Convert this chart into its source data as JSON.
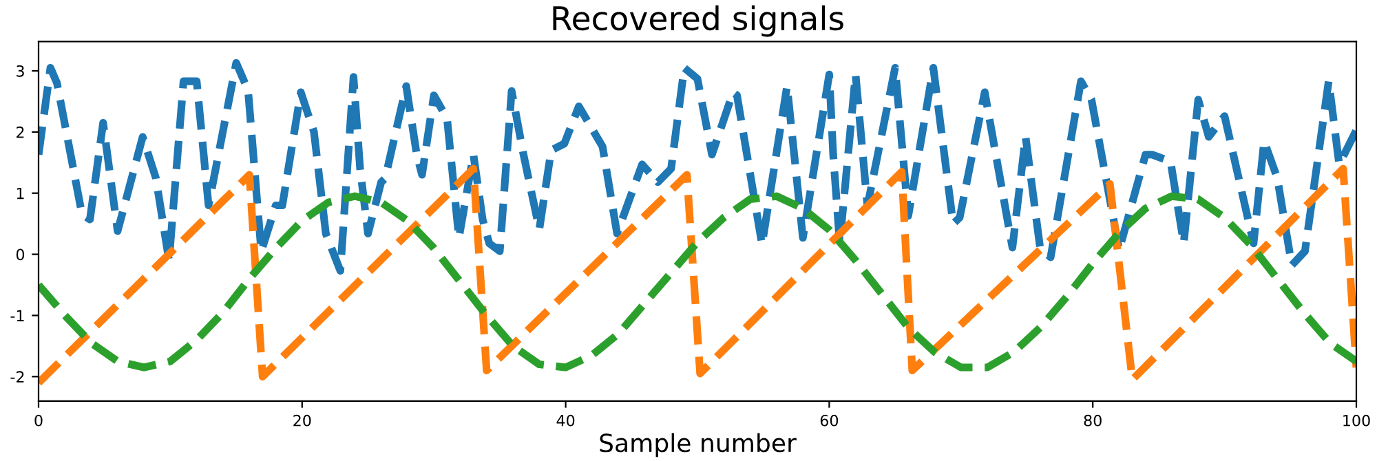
{
  "chart_data": {
    "type": "line",
    "title": "Recovered signals",
    "xlabel": "Sample number",
    "xlim": [
      0,
      100
    ],
    "xticks": [
      0,
      20,
      40,
      60,
      80,
      100
    ],
    "ylim": [
      -2.4,
      3.48
    ],
    "yticks": [
      -2,
      -1,
      0,
      1,
      2,
      3
    ],
    "grid": false,
    "line_style": "dashed",
    "marker": "none",
    "series": [
      {
        "color": "#1f77b4",
        "x": [
          0,
          0.9,
          1.4,
          3.3,
          3.9,
          4.9,
          6.0,
          7.9,
          8.9,
          9.9,
          11,
          12,
          12.9,
          15.0,
          15.9,
          16.9,
          18,
          18.5,
          19.9,
          20.9,
          21.8,
          22.9,
          23.9,
          24.4,
          25,
          26,
          26.3,
          27.9,
          28.7,
          29.1,
          30,
          31,
          31.9,
          33,
          33.7,
          34.2,
          35,
          35.9,
          36.8,
          38,
          38.9,
          39.9,
          41,
          42.8,
          43.9,
          45.8,
          47,
          48,
          49,
          50,
          51.1,
          52.7,
          53,
          54.9,
          56.8,
          58,
          60,
          60.3,
          60.8,
          62,
          62.9,
          65,
          66,
          67.9,
          69.4,
          69.9,
          71.8,
          73.9,
          74.9,
          76,
          76.8,
          79.1,
          79.9,
          82,
          84,
          84.5,
          85.9,
          86.9,
          88,
          88.8,
          90,
          92.2,
          93,
          94,
          95.1,
          96.1,
          97.9,
          98.7,
          100
        ],
        "values": [
          1.63,
          3.05,
          2.8,
          0.65,
          0.57,
          2.15,
          0.38,
          1.92,
          1.25,
          -0.1,
          2.83,
          2.83,
          0.8,
          3.13,
          2.68,
          0.05,
          0.8,
          0.8,
          2.65,
          2.0,
          0.34,
          -0.27,
          2.9,
          1.4,
          0.34,
          1.18,
          1.24,
          2.75,
          1.63,
          1.3,
          2.6,
          2.22,
          0.27,
          1.63,
          0.57,
          0.18,
          0.05,
          2.67,
          1.63,
          0.41,
          1.7,
          1.81,
          2.42,
          1.76,
          0.34,
          1.47,
          1.18,
          1.4,
          3.05,
          2.87,
          1.63,
          2.65,
          2.6,
          0.16,
          2.75,
          0.27,
          2.94,
          1.63,
          0.18,
          2.94,
          0.79,
          3.05,
          0.63,
          3.05,
          0.5,
          0.6,
          2.65,
          0.11,
          1.92,
          0.11,
          -0.05,
          2.83,
          2.53,
          0.07,
          1.63,
          1.63,
          1.52,
          0.18,
          2.53,
          1.92,
          2.26,
          0.18,
          1.85,
          1.25,
          -0.18,
          0.05,
          2.83,
          1.47,
          2.03
        ]
      },
      {
        "color": "#ff7f0e",
        "x": [
          0,
          16,
          17,
          33,
          34,
          49.2,
          50.2,
          65.5,
          66.3,
          81.3,
          83,
          99,
          100
        ],
        "values": [
          -2.1,
          1.3,
          -2.0,
          1.4,
          -1.9,
          1.3,
          -1.95,
          1.35,
          -1.9,
          1.15,
          -2.05,
          1.4,
          -1.85
        ]
      },
      {
        "color": "#2ca02c",
        "x": [
          0,
          2,
          4,
          6,
          8,
          10,
          12,
          14,
          16,
          18,
          20,
          22,
          24,
          26,
          28,
          30,
          32,
          34,
          36,
          38,
          40,
          42,
          44,
          46,
          48,
          50,
          52,
          54,
          56,
          58,
          60,
          62,
          64,
          66,
          68,
          70,
          72,
          74,
          76,
          78,
          80,
          82,
          84,
          86,
          88,
          90,
          92,
          94,
          96,
          98,
          100
        ],
        "values": [
          -0.5,
          -1.0,
          -1.45,
          -1.75,
          -1.85,
          -1.75,
          -1.4,
          -0.95,
          -0.4,
          0.1,
          0.55,
          0.85,
          0.95,
          0.85,
          0.55,
          0.1,
          -0.45,
          -1.0,
          -1.5,
          -1.8,
          -1.85,
          -1.65,
          -1.3,
          -0.8,
          -0.3,
          0.2,
          0.6,
          0.9,
          0.95,
          0.75,
          0.4,
          -0.1,
          -0.65,
          -1.2,
          -1.6,
          -1.85,
          -1.85,
          -1.6,
          -1.2,
          -0.7,
          -0.15,
          0.35,
          0.75,
          0.95,
          0.9,
          0.6,
          0.15,
          -0.4,
          -0.95,
          -1.45,
          -1.75
        ]
      }
    ]
  }
}
